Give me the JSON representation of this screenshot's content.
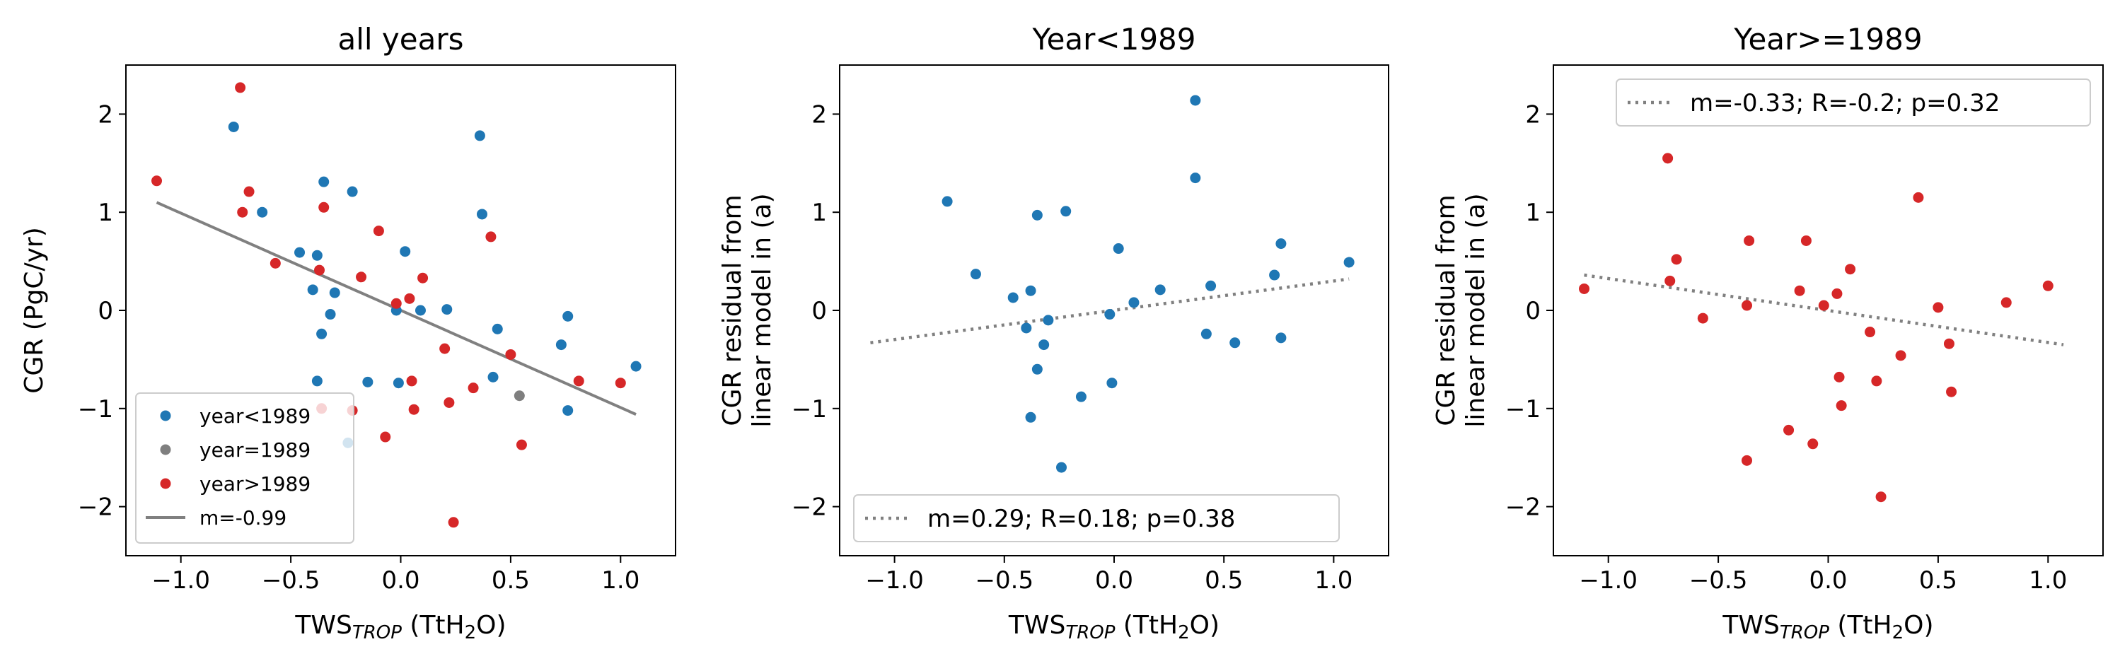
{
  "colors": {
    "before": "#1f77b4",
    "equal": "#7f7f7f",
    "after": "#d62728",
    "fit": "#808080"
  },
  "chart_data": [
    {
      "type": "scatter",
      "title": "all years",
      "xlabel": {
        "main": "TWS",
        "sub": "TROP",
        "unit_pre": " (TtH",
        "unit_sub": "2",
        "unit_post": "O)"
      },
      "ylabel": [
        "CGR (PgC/yr)"
      ],
      "xlim": [
        -1.25,
        1.25
      ],
      "ylim": [
        -2.5,
        2.5
      ],
      "xticks": [
        -1.0,
        -0.5,
        0.0,
        0.5,
        1.0
      ],
      "xtick_labels": [
        "−1.0",
        "−0.5",
        "0.0",
        "0.5",
        "1.0"
      ],
      "yticks": [
        -2,
        -1,
        0,
        1,
        2
      ],
      "ytick_labels": [
        "−2",
        "−1",
        "0",
        "1",
        "2"
      ],
      "legend_position": "lower-left",
      "series": [
        {
          "name": "year<1989",
          "color_key": "before",
          "points": [
            [
              -0.76,
              1.87
            ],
            [
              -0.63,
              1.0
            ],
            [
              -0.46,
              0.59
            ],
            [
              -0.4,
              0.21
            ],
            [
              -0.38,
              0.56
            ],
            [
              -0.35,
              1.31
            ],
            [
              -0.36,
              -0.24
            ],
            [
              -0.32,
              -0.04
            ],
            [
              -0.3,
              0.18
            ],
            [
              -0.22,
              1.21
            ],
            [
              -0.38,
              -0.72
            ],
            [
              -0.15,
              -0.73
            ],
            [
              -0.24,
              -1.35
            ],
            [
              -0.02,
              0.0
            ],
            [
              0.02,
              0.6
            ],
            [
              0.09,
              0.0
            ],
            [
              -0.01,
              -0.74
            ],
            [
              0.21,
              0.01
            ],
            [
              0.37,
              0.98
            ],
            [
              0.36,
              1.78
            ],
            [
              0.44,
              -0.19
            ],
            [
              0.42,
              -0.68
            ],
            [
              0.73,
              -0.35
            ],
            [
              0.76,
              -0.06
            ],
            [
              0.76,
              -1.02
            ],
            [
              1.07,
              -0.57
            ]
          ]
        },
        {
          "name": "year=1989",
          "color_key": "equal",
          "points": [
            [
              0.54,
              -0.87
            ]
          ]
        },
        {
          "name": "year>1989",
          "color_key": "after",
          "points": [
            [
              -1.11,
              1.32
            ],
            [
              -0.73,
              2.27
            ],
            [
              -0.72,
              1.0
            ],
            [
              -0.69,
              1.21
            ],
            [
              -0.57,
              0.48
            ],
            [
              -0.37,
              0.41
            ],
            [
              -0.35,
              1.05
            ],
            [
              -0.36,
              -1.0
            ],
            [
              -0.18,
              0.34
            ],
            [
              -0.1,
              0.81
            ],
            [
              -0.22,
              -1.02
            ],
            [
              -0.07,
              -1.29
            ],
            [
              -0.02,
              0.07
            ],
            [
              0.04,
              0.12
            ],
            [
              0.1,
              0.33
            ],
            [
              0.05,
              -0.72
            ],
            [
              0.06,
              -1.01
            ],
            [
              0.2,
              -0.39
            ],
            [
              0.22,
              -0.94
            ],
            [
              0.33,
              -0.79
            ],
            [
              0.41,
              0.75
            ],
            [
              0.5,
              -0.45
            ],
            [
              0.55,
              -1.37
            ],
            [
              0.24,
              -2.16
            ],
            [
              0.81,
              -0.72
            ],
            [
              1.0,
              -0.74
            ]
          ]
        }
      ],
      "fit_line": {
        "name": "m=-0.99",
        "style": "solid",
        "x": [
          -1.11,
          1.07
        ],
        "y": [
          1.1,
          -1.06
        ]
      }
    },
    {
      "type": "scatter",
      "title": "Year<1989",
      "xlabel": {
        "main": "TWS",
        "sub": "TROP",
        "unit_pre": " (TtH",
        "unit_sub": "2",
        "unit_post": "O)"
      },
      "ylabel": [
        "CGR residual from",
        "linear model in (a)"
      ],
      "xlim": [
        -1.25,
        1.25
      ],
      "ylim": [
        -2.5,
        2.5
      ],
      "xticks": [
        -1.0,
        -0.5,
        0.0,
        0.5,
        1.0
      ],
      "xtick_labels": [
        "−1.0",
        "−0.5",
        "0.0",
        "0.5",
        "1.0"
      ],
      "yticks": [
        -2,
        -1,
        0,
        1,
        2
      ],
      "ytick_labels": [
        "−2",
        "−1",
        "0",
        "1",
        "2"
      ],
      "legend_position": "lower-right",
      "series": [
        {
          "name": "",
          "color_key": "before",
          "points": [
            [
              -0.76,
              1.11
            ],
            [
              -0.63,
              0.37
            ],
            [
              -0.46,
              0.13
            ],
            [
              -0.4,
              -0.18
            ],
            [
              -0.38,
              0.2
            ],
            [
              -0.38,
              -1.09
            ],
            [
              -0.35,
              0.97
            ],
            [
              -0.35,
              -0.6
            ],
            [
              -0.32,
              -0.35
            ],
            [
              -0.3,
              -0.1
            ],
            [
              -0.22,
              1.01
            ],
            [
              -0.24,
              -1.6
            ],
            [
              -0.15,
              -0.88
            ],
            [
              -0.02,
              -0.04
            ],
            [
              0.02,
              0.63
            ],
            [
              -0.01,
              -0.74
            ],
            [
              0.09,
              0.08
            ],
            [
              0.21,
              0.21
            ],
            [
              0.37,
              2.14
            ],
            [
              0.37,
              1.35
            ],
            [
              0.42,
              -0.24
            ],
            [
              0.44,
              0.25
            ],
            [
              0.55,
              -0.33
            ],
            [
              0.73,
              0.36
            ],
            [
              0.76,
              0.68
            ],
            [
              0.76,
              -0.28
            ],
            [
              1.07,
              0.49
            ]
          ]
        }
      ],
      "fit_line": {
        "name": "m=0.29; R=0.18; p=0.38",
        "style": "dotted",
        "x": [
          -1.11,
          1.07
        ],
        "y": [
          -0.33,
          0.32
        ]
      }
    },
    {
      "type": "scatter",
      "title": "Year>=1989",
      "xlabel": {
        "main": "TWS",
        "sub": "TROP",
        "unit_pre": " (TtH",
        "unit_sub": "2",
        "unit_post": "O)"
      },
      "ylabel": [
        "CGR residual from",
        "linear model in (a)"
      ],
      "xlim": [
        -1.25,
        1.25
      ],
      "ylim": [
        -2.5,
        2.5
      ],
      "xticks": [
        -1.0,
        -0.5,
        0.0,
        0.5,
        1.0
      ],
      "xtick_labels": [
        "−1.0",
        "−0.5",
        "0.0",
        "0.5",
        "1.0"
      ],
      "yticks": [
        -2,
        -1,
        0,
        1,
        2
      ],
      "ytick_labels": [
        "−2",
        "−1",
        "0",
        "1",
        "2"
      ],
      "legend_position": "top-right",
      "series": [
        {
          "name": "",
          "color_key": "after",
          "points": [
            [
              -1.11,
              0.22
            ],
            [
              -0.73,
              1.55
            ],
            [
              -0.72,
              0.3
            ],
            [
              -0.69,
              0.52
            ],
            [
              -0.57,
              -0.08
            ],
            [
              -0.37,
              0.05
            ],
            [
              -0.36,
              0.71
            ],
            [
              -0.37,
              -1.53
            ],
            [
              -0.18,
              -1.22
            ],
            [
              -0.13,
              0.2
            ],
            [
              -0.1,
              0.71
            ],
            [
              -0.07,
              -1.36
            ],
            [
              -0.02,
              0.05
            ],
            [
              0.04,
              0.17
            ],
            [
              0.05,
              -0.68
            ],
            [
              0.06,
              -0.97
            ],
            [
              0.1,
              0.42
            ],
            [
              0.19,
              -0.22
            ],
            [
              0.22,
              -0.72
            ],
            [
              0.24,
              -1.9
            ],
            [
              0.33,
              -0.46
            ],
            [
              0.41,
              1.15
            ],
            [
              0.5,
              0.03
            ],
            [
              0.55,
              -0.34
            ],
            [
              0.56,
              -0.83
            ],
            [
              0.81,
              0.08
            ],
            [
              1.0,
              0.25
            ]
          ]
        }
      ],
      "fit_line": {
        "name": "m=-0.33; R=-0.2; p=0.32",
        "style": "dotted",
        "x": [
          -1.11,
          1.07
        ],
        "y": [
          0.36,
          -0.35
        ]
      }
    }
  ]
}
